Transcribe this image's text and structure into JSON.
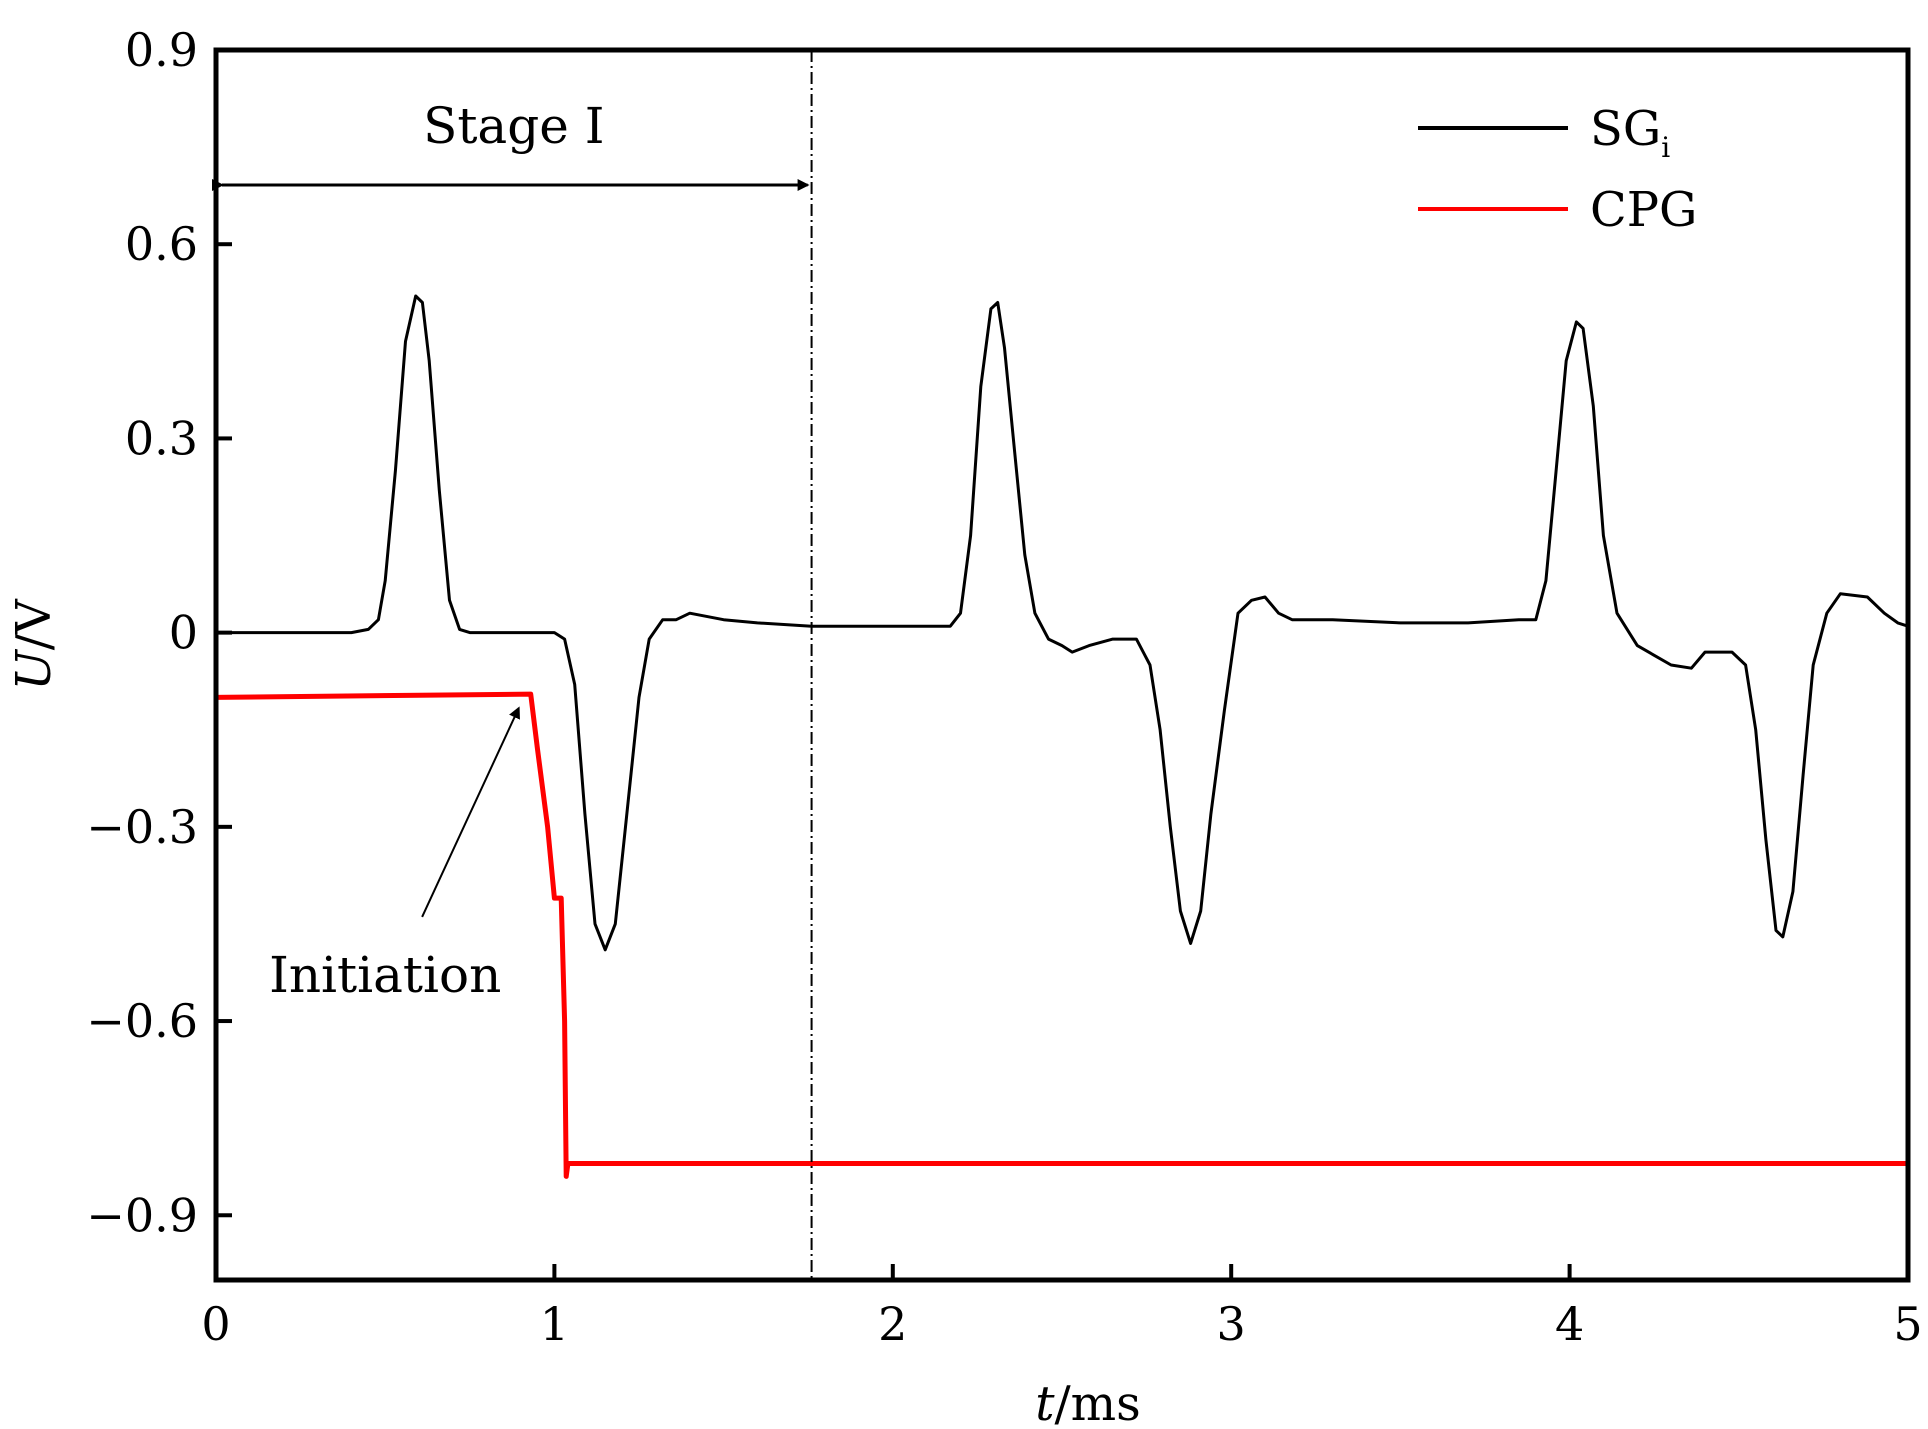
{
  "chart_data": {
    "type": "line",
    "xlabel_italic": "t",
    "xlabel_unit": "/ms",
    "ylabel_italic": "U",
    "ylabel_unit": "/V",
    "xlim": [
      0,
      5
    ],
    "ylim": [
      -1.0,
      0.9
    ],
    "x_ticks": [
      0,
      1,
      2,
      3,
      4,
      5
    ],
    "x_tick_labels": [
      "0",
      "1",
      "2",
      "3",
      "4",
      "5"
    ],
    "y_ticks": [
      0.9,
      0.6,
      0.3,
      0,
      -0.3,
      -0.6,
      -0.9
    ],
    "y_tick_labels": [
      "0.9",
      "0.6",
      "0.3",
      "0",
      "−0.3",
      "−0.6",
      "−0.9"
    ],
    "grid": false,
    "legend_position": "top-right",
    "series": [
      {
        "name": "SG",
        "name_subscript": "i",
        "color": "#000000",
        "points": [
          [
            0,
            0
          ],
          [
            0.4,
            0
          ],
          [
            0.45,
            0.005
          ],
          [
            0.48,
            0.02
          ],
          [
            0.5,
            0.08
          ],
          [
            0.53,
            0.25
          ],
          [
            0.56,
            0.45
          ],
          [
            0.59,
            0.52
          ],
          [
            0.61,
            0.51
          ],
          [
            0.63,
            0.42
          ],
          [
            0.66,
            0.22
          ],
          [
            0.69,
            0.05
          ],
          [
            0.72,
            0.005
          ],
          [
            0.75,
            0
          ],
          [
            1.0,
            0
          ],
          [
            1.03,
            -0.01
          ],
          [
            1.06,
            -0.08
          ],
          [
            1.09,
            -0.28
          ],
          [
            1.12,
            -0.45
          ],
          [
            1.15,
            -0.49
          ],
          [
            1.18,
            -0.45
          ],
          [
            1.21,
            -0.3
          ],
          [
            1.25,
            -0.1
          ],
          [
            1.28,
            -0.01
          ],
          [
            1.32,
            0.02
          ],
          [
            1.36,
            0.02
          ],
          [
            1.4,
            0.03
          ],
          [
            1.5,
            0.02
          ],
          [
            1.6,
            0.015
          ],
          [
            1.76,
            0.01
          ],
          [
            2.0,
            0.01
          ],
          [
            2.17,
            0.01
          ],
          [
            2.2,
            0.03
          ],
          [
            2.23,
            0.15
          ],
          [
            2.26,
            0.38
          ],
          [
            2.29,
            0.5
          ],
          [
            2.31,
            0.51
          ],
          [
            2.33,
            0.44
          ],
          [
            2.36,
            0.28
          ],
          [
            2.39,
            0.12
          ],
          [
            2.42,
            0.03
          ],
          [
            2.46,
            -0.01
          ],
          [
            2.5,
            -0.02
          ],
          [
            2.53,
            -0.03
          ],
          [
            2.58,
            -0.02
          ],
          [
            2.65,
            -0.01
          ],
          [
            2.72,
            -0.01
          ],
          [
            2.76,
            -0.05
          ],
          [
            2.79,
            -0.15
          ],
          [
            2.82,
            -0.3
          ],
          [
            2.85,
            -0.43
          ],
          [
            2.88,
            -0.48
          ],
          [
            2.91,
            -0.43
          ],
          [
            2.94,
            -0.28
          ],
          [
            2.98,
            -0.12
          ],
          [
            3.02,
            0.03
          ],
          [
            3.06,
            0.05
          ],
          [
            3.1,
            0.055
          ],
          [
            3.14,
            0.03
          ],
          [
            3.18,
            0.02
          ],
          [
            3.3,
            0.02
          ],
          [
            3.5,
            0.015
          ],
          [
            3.7,
            0.015
          ],
          [
            3.85,
            0.02
          ],
          [
            3.9,
            0.02
          ],
          [
            3.93,
            0.08
          ],
          [
            3.96,
            0.25
          ],
          [
            3.99,
            0.42
          ],
          [
            4.02,
            0.48
          ],
          [
            4.04,
            0.47
          ],
          [
            4.07,
            0.35
          ],
          [
            4.1,
            0.15
          ],
          [
            4.14,
            0.03
          ],
          [
            4.2,
            -0.02
          ],
          [
            4.3,
            -0.05
          ],
          [
            4.36,
            -0.055
          ],
          [
            4.4,
            -0.03
          ],
          [
            4.48,
            -0.03
          ],
          [
            4.52,
            -0.05
          ],
          [
            4.55,
            -0.15
          ],
          [
            4.58,
            -0.32
          ],
          [
            4.61,
            -0.46
          ],
          [
            4.63,
            -0.47
          ],
          [
            4.66,
            -0.4
          ],
          [
            4.69,
            -0.22
          ],
          [
            4.72,
            -0.05
          ],
          [
            4.76,
            0.03
          ],
          [
            4.8,
            0.06
          ],
          [
            4.88,
            0.055
          ],
          [
            4.93,
            0.03
          ],
          [
            4.97,
            0.015
          ],
          [
            5.0,
            0.01
          ]
        ]
      },
      {
        "name": "CPG",
        "color": "#ff0000",
        "points": [
          [
            0,
            -0.1
          ],
          [
            0.93,
            -0.095
          ],
          [
            0.95,
            -0.18
          ],
          [
            0.98,
            -0.3
          ],
          [
            1.0,
            -0.41
          ],
          [
            1.02,
            -0.41
          ],
          [
            1.03,
            -0.6
          ],
          [
            1.035,
            -0.84
          ],
          [
            1.04,
            -0.82
          ],
          [
            2.0,
            -0.82
          ],
          [
            3.0,
            -0.82
          ],
          [
            4.0,
            -0.82
          ],
          [
            5.0,
            -0.82
          ]
        ]
      }
    ],
    "annotations": {
      "stage_label": "Stage Ⅰ",
      "stage_boundary_x": 1.76,
      "initiation_label": "Initiation",
      "initiation_point": [
        0.93,
        -0.095
      ],
      "initiation_text_at": [
        0.55,
        -0.47
      ]
    }
  }
}
